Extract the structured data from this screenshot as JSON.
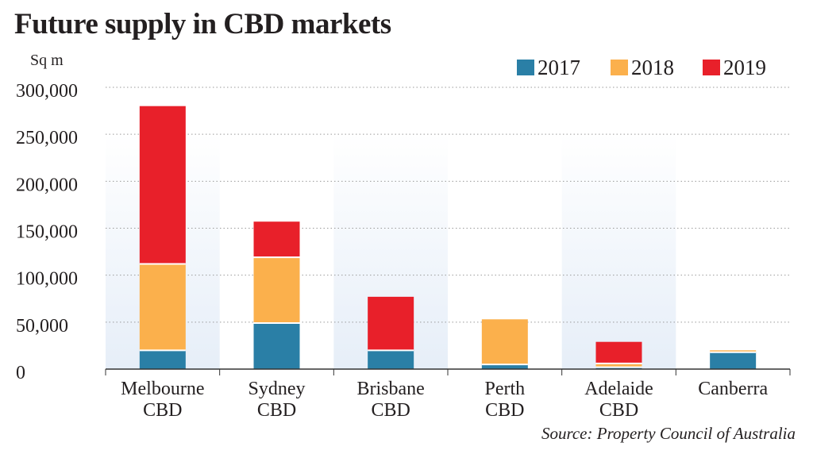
{
  "chart_data": {
    "type": "bar",
    "stacked": true,
    "title": "Future supply in CBD markets",
    "ylabel": "Sq m",
    "xlabel": "",
    "ylim": [
      0,
      300000
    ],
    "yticks": [
      0,
      50000,
      100000,
      150000,
      200000,
      250000,
      300000
    ],
    "ytick_labels": [
      "0",
      "50,000",
      "100,000",
      "150,000",
      "200,000",
      "250,000",
      "300,000"
    ],
    "grid": true,
    "legend_position": "top-right",
    "categories": [
      [
        "Melbourne",
        "CBD"
      ],
      [
        "Sydney",
        "CBD"
      ],
      [
        "Brisbane",
        "CBD"
      ],
      [
        "Perth",
        "CBD"
      ],
      [
        "Adelaide",
        "CBD"
      ],
      [
        "Canberra"
      ]
    ],
    "series": [
      {
        "name": "2017",
        "color": "#2a7fa6",
        "values": [
          20000,
          49000,
          20000,
          5000,
          2000,
          18000
        ]
      },
      {
        "name": "2018",
        "color": "#fbb04c",
        "values": [
          92000,
          70000,
          0,
          48000,
          4000,
          2000
        ]
      },
      {
        "name": "2019",
        "color": "#e8202a",
        "values": [
          168000,
          38000,
          57000,
          0,
          23000,
          0
        ]
      }
    ],
    "source": "Source: Property Council of Australia"
  },
  "colors": {
    "band": "#e6eef8",
    "grid": "#9a9a9a",
    "axis": "#333333",
    "divider": "#ffffff"
  }
}
